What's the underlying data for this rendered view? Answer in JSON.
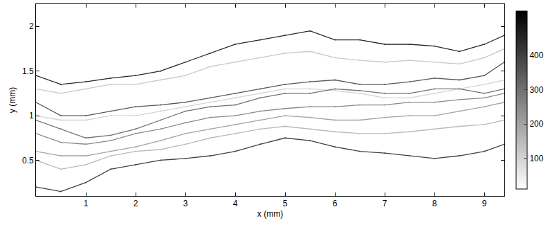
{
  "chart_data": {
    "type": "line",
    "x_label": "x (mm)",
    "y_label": "y (mm)",
    "xlim": [
      0,
      9.4
    ],
    "ylim": [
      0.1,
      2.25
    ],
    "xticks": [
      1,
      2,
      3,
      4,
      5,
      6,
      7,
      8,
      9
    ],
    "yticks": [
      0.5,
      1,
      1.5,
      2
    ],
    "grid": false,
    "colorbar_range": [
      10,
      530
    ],
    "colorbar_ticks": [
      100,
      200,
      300,
      400
    ],
    "x": [
      0,
      0.5,
      1,
      1.5,
      2,
      2.5,
      3,
      3.5,
      4,
      4.5,
      5,
      5.5,
      6,
      6.5,
      7,
      7.5,
      8,
      8.5,
      9,
      9.4
    ],
    "series": [
      {
        "level": 100,
        "values": [
          1.0,
          0.95,
          0.95,
          1.0,
          1.0,
          1.05,
          1.1,
          1.15,
          1.2,
          1.25,
          1.3,
          1.3,
          1.28,
          1.25,
          1.2,
          1.2,
          1.25,
          1.3,
          1.35,
          1.4
        ]
      },
      {
        "level": 120,
        "values": [
          1.3,
          1.25,
          1.3,
          1.35,
          1.35,
          1.4,
          1.45,
          1.55,
          1.6,
          1.65,
          1.7,
          1.72,
          1.65,
          1.62,
          1.6,
          1.62,
          1.6,
          1.58,
          1.65,
          1.75
        ]
      },
      {
        "level": 150,
        "values": [
          0.5,
          0.4,
          0.45,
          0.55,
          0.6,
          0.62,
          0.68,
          0.75,
          0.8,
          0.85,
          0.88,
          0.85,
          0.82,
          0.8,
          0.8,
          0.82,
          0.85,
          0.88,
          0.9,
          0.95
        ]
      },
      {
        "level": 200,
        "values": [
          0.6,
          0.55,
          0.55,
          0.6,
          0.65,
          0.72,
          0.8,
          0.85,
          0.9,
          0.95,
          1.0,
          0.98,
          0.95,
          0.95,
          0.98,
          1.0,
          1.0,
          1.05,
          1.1,
          1.15
        ]
      },
      {
        "level": 250,
        "values": [
          0.8,
          0.7,
          0.68,
          0.72,
          0.8,
          0.85,
          0.92,
          0.98,
          1.0,
          1.05,
          1.08,
          1.1,
          1.1,
          1.12,
          1.12,
          1.15,
          1.15,
          1.18,
          1.2,
          1.25
        ]
      },
      {
        "level": 300,
        "values": [
          0.95,
          0.85,
          0.75,
          0.78,
          0.85,
          0.95,
          1.05,
          1.1,
          1.12,
          1.2,
          1.25,
          1.25,
          1.3,
          1.28,
          1.25,
          1.25,
          1.3,
          1.3,
          1.25,
          1.3
        ]
      },
      {
        "level": 350,
        "values": [
          1.15,
          1.0,
          1.0,
          1.05,
          1.1,
          1.12,
          1.15,
          1.2,
          1.25,
          1.3,
          1.35,
          1.38,
          1.4,
          1.35,
          1.35,
          1.38,
          1.42,
          1.4,
          1.45,
          1.6
        ]
      },
      {
        "level": 400,
        "values": [
          0.2,
          0.15,
          0.25,
          0.4,
          0.45,
          0.5,
          0.52,
          0.55,
          0.6,
          0.68,
          0.75,
          0.72,
          0.65,
          0.6,
          0.58,
          0.55,
          0.52,
          0.55,
          0.6,
          0.68
        ]
      },
      {
        "level": 450,
        "values": [
          1.45,
          1.35,
          1.38,
          1.42,
          1.45,
          1.5,
          1.6,
          1.7,
          1.8,
          1.85,
          1.9,
          1.95,
          1.85,
          1.85,
          1.8,
          1.8,
          1.78,
          1.72,
          1.8,
          1.9
        ]
      }
    ]
  }
}
